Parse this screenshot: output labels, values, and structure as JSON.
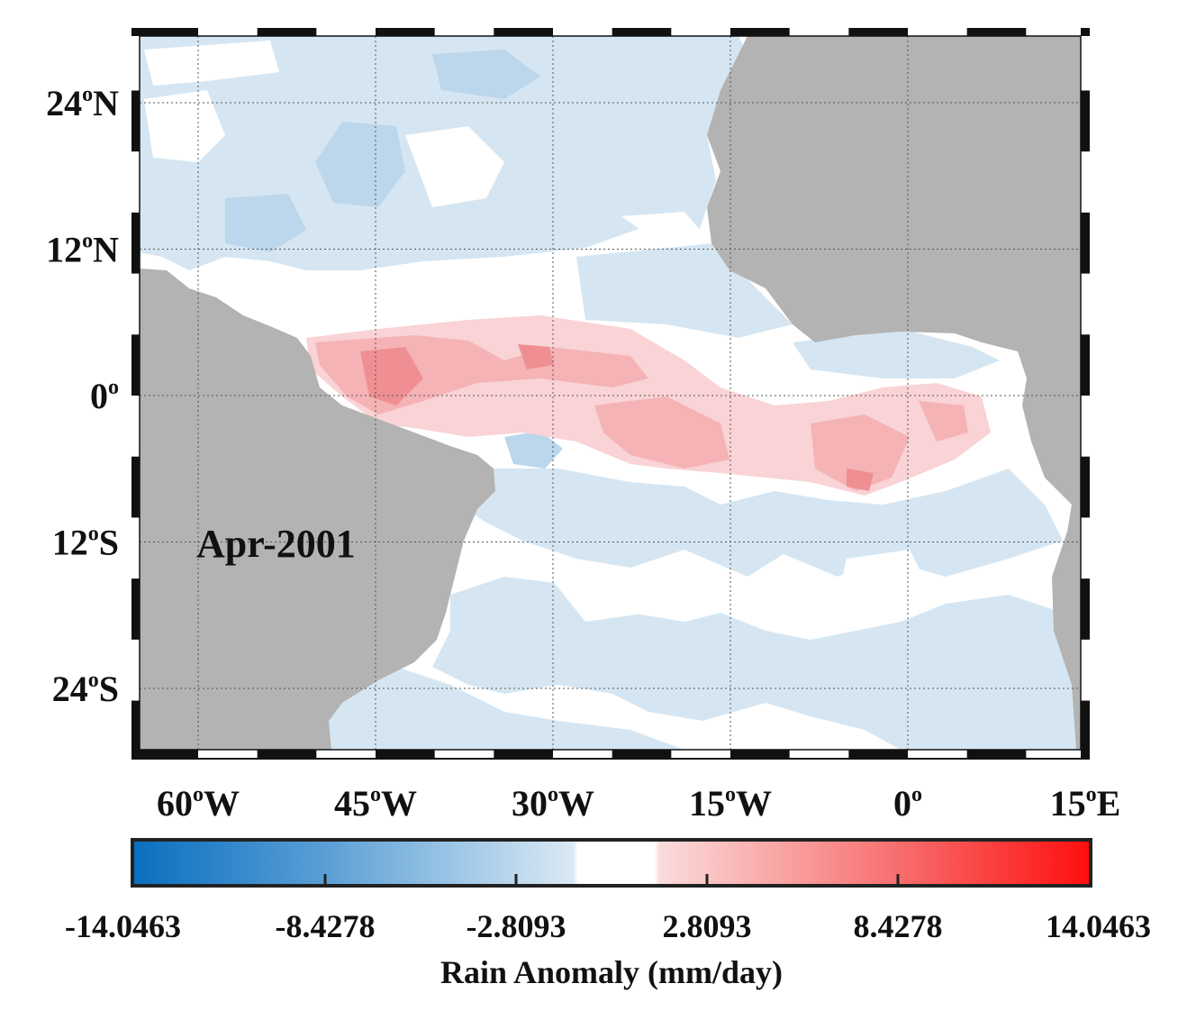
{
  "map": {
    "panel_label": "Apr-2001",
    "lat_labels": [
      {
        "value": 24,
        "deg": "24",
        "hemi": "N"
      },
      {
        "value": 12,
        "deg": "12",
        "hemi": "N"
      },
      {
        "value": 0,
        "deg": "0",
        "hemi": ""
      },
      {
        "value": -12,
        "deg": "12",
        "hemi": "S"
      },
      {
        "value": -24,
        "deg": "24",
        "hemi": "S"
      }
    ],
    "lon_labels": [
      {
        "value": -60,
        "deg": "60",
        "hemi": "W"
      },
      {
        "value": -45,
        "deg": "45",
        "hemi": "W"
      },
      {
        "value": -30,
        "deg": "30",
        "hemi": "W"
      },
      {
        "value": -15,
        "deg": "15",
        "hemi": "W"
      },
      {
        "value": 0,
        "deg": "0",
        "hemi": ""
      },
      {
        "value": 15,
        "deg": "15",
        "hemi": "E"
      }
    ],
    "land_color": "#b3b3b3",
    "positive_color": "#f4a3a6",
    "negative_color": "#c7dff0"
  },
  "colorbar": {
    "label": "Rain Anomaly (mm/day)",
    "min": -14.0463,
    "max": 14.0463,
    "ticks": [
      "-14.0463",
      "-8.4278",
      "-2.8093",
      "2.8093",
      "8.4278",
      "14.0463"
    ],
    "low_color": "#0a6fbf",
    "high_color": "#ff0f0f"
  }
}
